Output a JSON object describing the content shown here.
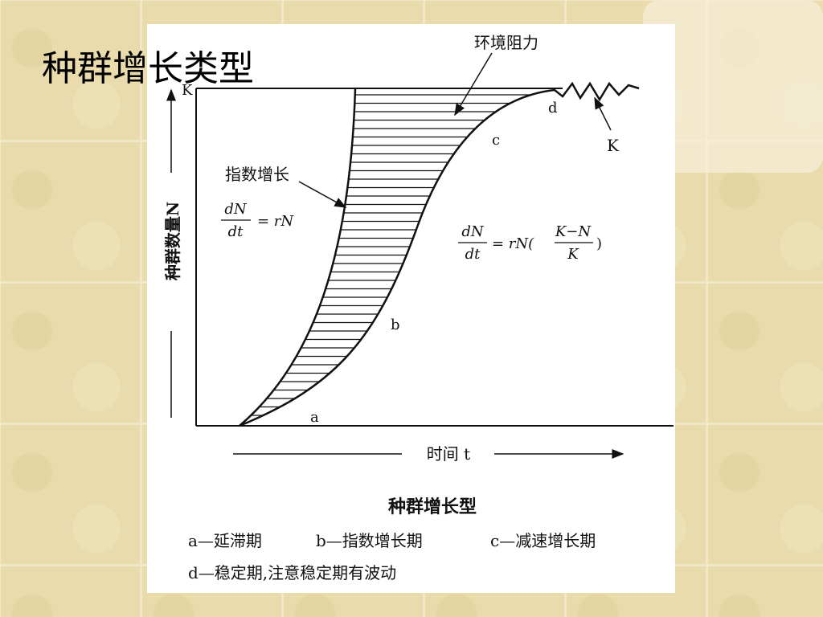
{
  "title": "种群增长类型",
  "figure": {
    "axis_top_label": "K",
    "y_axis_label": "种群数量N",
    "x_axis_label": "时间 t",
    "resistance_label": "环境阻力",
    "exp_label": "指数增长",
    "exp_formula": {
      "num": "dN",
      "den": "dt",
      "rhs": "= rN"
    },
    "logistic_formula": {
      "num": "dN",
      "den": "dt",
      "rhs": "= rN(",
      "frac_num": "K−N",
      "frac_den": "K",
      "close": ")"
    },
    "point_labels": {
      "a": "a",
      "b": "b",
      "c": "c",
      "d": "d"
    },
    "k_label": "K",
    "caption_title": "种群增长型",
    "legend": [
      "a—延滞期",
      "b—指数增长期",
      "c—减速增长期",
      "d—稳定期,注意稳定期有波动"
    ]
  }
}
